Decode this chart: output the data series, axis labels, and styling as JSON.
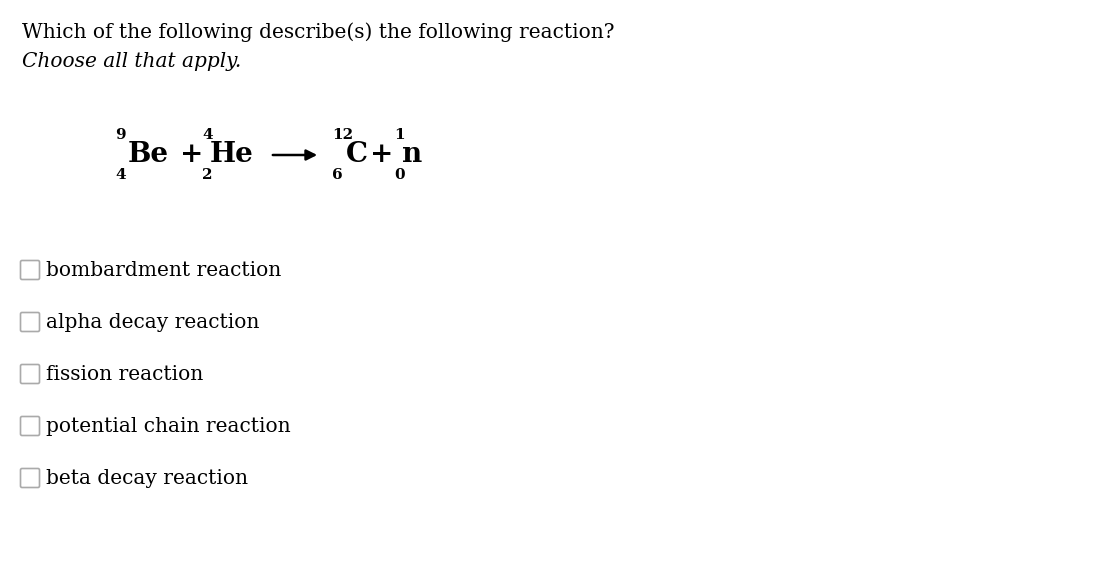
{
  "title_line1": "Which of the following describe(s) the following reaction?",
  "title_line2": "Choose all that apply.",
  "title_fontsize": 14.5,
  "subtitle_fontsize": 14.5,
  "equation_fontsize": 20,
  "script_fontsize": 11,
  "options_fontsize": 14.5,
  "background_color": "#ffffff",
  "text_color": "#000000",
  "options": [
    "bombardment reaction",
    "alpha decay reaction",
    "fission reaction",
    "potential chain reaction",
    "beta decay reaction"
  ],
  "equation": {
    "Be_mass": "9",
    "Be_atomic": "4",
    "He_mass": "4",
    "He_atomic": "2",
    "C_mass": "12",
    "C_atomic": "6",
    "n_mass": "1",
    "n_atomic": "0"
  }
}
